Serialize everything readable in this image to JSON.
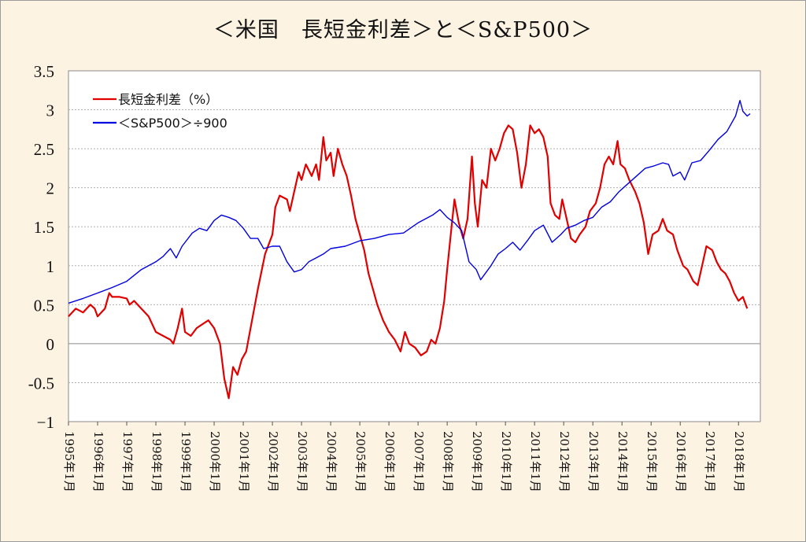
{
  "title": "＜米国　長短金利差＞と＜S&P500＞",
  "chart_data": {
    "type": "line",
    "title": "＜米国　長短金利差＞と＜S&P500＞",
    "xlabel": "",
    "ylabel": "",
    "ylim": [
      -1,
      3.5
    ],
    "xlim": [
      1995.0,
      2018.75
    ],
    "y_ticks": [
      "3.5",
      "3",
      "2.5",
      "2",
      "1.5",
      "1",
      "0.5",
      "0",
      "-0.5",
      "−1"
    ],
    "x_ticks": [
      "1995年1月",
      "1996年1月",
      "1997年1月",
      "1998年1月",
      "1999年1月",
      "2000年1月",
      "2001年1月",
      "2002年1月",
      "2003年1月",
      "2004年1月",
      "2005年1月",
      "2006年1月",
      "2007年1月",
      "2008年1月",
      "2009年1月",
      "2010年1月",
      "2011年1月",
      "2012年1月",
      "2013年1月",
      "2014年1月",
      "2015年1月",
      "2016年1月",
      "2017年1月",
      "2018年1月"
    ],
    "grid": true,
    "legend_position": "top-left",
    "series": [
      {
        "name": "長短金利差（%）",
        "color": "#e00000",
        "points": [
          [
            1995.0,
            0.35
          ],
          [
            1995.25,
            0.45
          ],
          [
            1995.5,
            0.4
          ],
          [
            1995.75,
            0.5
          ],
          [
            1995.9,
            0.45
          ],
          [
            1996.0,
            0.35
          ],
          [
            1996.25,
            0.45
          ],
          [
            1996.4,
            0.65
          ],
          [
            1996.5,
            0.6
          ],
          [
            1996.75,
            0.6
          ],
          [
            1997.0,
            0.58
          ],
          [
            1997.1,
            0.5
          ],
          [
            1997.25,
            0.55
          ],
          [
            1997.5,
            0.45
          ],
          [
            1997.75,
            0.35
          ],
          [
            1998.0,
            0.15
          ],
          [
            1998.25,
            0.1
          ],
          [
            1998.5,
            0.05
          ],
          [
            1998.6,
            0.0
          ],
          [
            1998.75,
            0.2
          ],
          [
            1998.9,
            0.45
          ],
          [
            1999.0,
            0.15
          ],
          [
            1999.2,
            0.1
          ],
          [
            1999.4,
            0.2
          ],
          [
            1999.6,
            0.25
          ],
          [
            1999.8,
            0.3
          ],
          [
            2000.0,
            0.2
          ],
          [
            2000.2,
            0.0
          ],
          [
            2000.35,
            -0.45
          ],
          [
            2000.5,
            -0.7
          ],
          [
            2000.65,
            -0.3
          ],
          [
            2000.8,
            -0.4
          ],
          [
            2000.95,
            -0.2
          ],
          [
            2001.1,
            -0.1
          ],
          [
            2001.3,
            0.3
          ],
          [
            2001.5,
            0.7
          ],
          [
            2001.75,
            1.15
          ],
          [
            2001.9,
            1.3
          ],
          [
            2002.0,
            1.4
          ],
          [
            2002.1,
            1.75
          ],
          [
            2002.25,
            1.9
          ],
          [
            2002.5,
            1.85
          ],
          [
            2002.6,
            1.7
          ],
          [
            2002.75,
            1.95
          ],
          [
            2002.9,
            2.2
          ],
          [
            2003.0,
            2.1
          ],
          [
            2003.15,
            2.3
          ],
          [
            2003.35,
            2.15
          ],
          [
            2003.5,
            2.3
          ],
          [
            2003.6,
            2.1
          ],
          [
            2003.75,
            2.65
          ],
          [
            2003.85,
            2.35
          ],
          [
            2004.0,
            2.45
          ],
          [
            2004.1,
            2.15
          ],
          [
            2004.25,
            2.5
          ],
          [
            2004.4,
            2.3
          ],
          [
            2004.55,
            2.15
          ],
          [
            2004.7,
            1.9
          ],
          [
            2004.85,
            1.6
          ],
          [
            2005.0,
            1.4
          ],
          [
            2005.15,
            1.2
          ],
          [
            2005.3,
            0.9
          ],
          [
            2005.45,
            0.7
          ],
          [
            2005.6,
            0.5
          ],
          [
            2005.8,
            0.3
          ],
          [
            2006.0,
            0.15
          ],
          [
            2006.2,
            0.05
          ],
          [
            2006.4,
            -0.1
          ],
          [
            2006.55,
            0.15
          ],
          [
            2006.7,
            0.0
          ],
          [
            2006.9,
            -0.05
          ],
          [
            2007.1,
            -0.15
          ],
          [
            2007.3,
            -0.1
          ],
          [
            2007.45,
            0.05
          ],
          [
            2007.6,
            0.0
          ],
          [
            2007.75,
            0.2
          ],
          [
            2007.9,
            0.55
          ],
          [
            2008.0,
            0.95
          ],
          [
            2008.15,
            1.5
          ],
          [
            2008.25,
            1.85
          ],
          [
            2008.4,
            1.55
          ],
          [
            2008.55,
            1.35
          ],
          [
            2008.7,
            1.6
          ],
          [
            2008.85,
            2.4
          ],
          [
            2008.95,
            1.8
          ],
          [
            2009.05,
            1.5
          ],
          [
            2009.2,
            2.1
          ],
          [
            2009.35,
            2.0
          ],
          [
            2009.5,
            2.5
          ],
          [
            2009.65,
            2.35
          ],
          [
            2009.8,
            2.5
          ],
          [
            2009.95,
            2.7
          ],
          [
            2010.1,
            2.8
          ],
          [
            2010.25,
            2.75
          ],
          [
            2010.4,
            2.45
          ],
          [
            2010.55,
            2.0
          ],
          [
            2010.7,
            2.3
          ],
          [
            2010.85,
            2.8
          ],
          [
            2011.0,
            2.7
          ],
          [
            2011.15,
            2.75
          ],
          [
            2011.3,
            2.65
          ],
          [
            2011.45,
            2.4
          ],
          [
            2011.55,
            1.8
          ],
          [
            2011.7,
            1.65
          ],
          [
            2011.85,
            1.6
          ],
          [
            2011.95,
            1.85
          ],
          [
            2012.1,
            1.6
          ],
          [
            2012.25,
            1.35
          ],
          [
            2012.4,
            1.3
          ],
          [
            2012.55,
            1.4
          ],
          [
            2012.75,
            1.5
          ],
          [
            2012.9,
            1.7
          ],
          [
            2013.1,
            1.8
          ],
          [
            2013.25,
            2.0
          ],
          [
            2013.4,
            2.3
          ],
          [
            2013.55,
            2.4
          ],
          [
            2013.7,
            2.3
          ],
          [
            2013.85,
            2.6
          ],
          [
            2013.95,
            2.3
          ],
          [
            2014.1,
            2.25
          ],
          [
            2014.25,
            2.1
          ],
          [
            2014.45,
            1.95
          ],
          [
            2014.6,
            1.8
          ],
          [
            2014.75,
            1.55
          ],
          [
            2014.9,
            1.15
          ],
          [
            2015.05,
            1.4
          ],
          [
            2015.25,
            1.45
          ],
          [
            2015.4,
            1.6
          ],
          [
            2015.55,
            1.45
          ],
          [
            2015.75,
            1.4
          ],
          [
            2015.9,
            1.2
          ],
          [
            2016.1,
            1.0
          ],
          [
            2016.25,
            0.95
          ],
          [
            2016.45,
            0.8
          ],
          [
            2016.6,
            0.75
          ],
          [
            2016.75,
            1.0
          ],
          [
            2016.9,
            1.25
          ],
          [
            2017.1,
            1.2
          ],
          [
            2017.25,
            1.05
          ],
          [
            2017.4,
            0.95
          ],
          [
            2017.55,
            0.9
          ],
          [
            2017.7,
            0.8
          ],
          [
            2017.85,
            0.65
          ],
          [
            2018.0,
            0.55
          ],
          [
            2018.15,
            0.6
          ],
          [
            2018.3,
            0.45
          ]
        ]
      },
      {
        "name": "＜S&P500＞÷900",
        "color": "#0000e0",
        "points": [
          [
            1995.0,
            0.52
          ],
          [
            1995.5,
            0.58
          ],
          [
            1996.0,
            0.65
          ],
          [
            1996.5,
            0.72
          ],
          [
            1997.0,
            0.8
          ],
          [
            1997.5,
            0.95
          ],
          [
            1998.0,
            1.05
          ],
          [
            1998.25,
            1.12
          ],
          [
            1998.5,
            1.22
          ],
          [
            1998.7,
            1.1
          ],
          [
            1998.9,
            1.25
          ],
          [
            1999.25,
            1.42
          ],
          [
            1999.5,
            1.48
          ],
          [
            1999.75,
            1.45
          ],
          [
            2000.0,
            1.58
          ],
          [
            2000.25,
            1.65
          ],
          [
            2000.5,
            1.62
          ],
          [
            2000.75,
            1.58
          ],
          [
            2001.0,
            1.48
          ],
          [
            2001.25,
            1.35
          ],
          [
            2001.5,
            1.35
          ],
          [
            2001.7,
            1.22
          ],
          [
            2002.0,
            1.25
          ],
          [
            2002.25,
            1.25
          ],
          [
            2002.5,
            1.05
          ],
          [
            2002.75,
            0.92
          ],
          [
            2003.0,
            0.95
          ],
          [
            2003.25,
            1.05
          ],
          [
            2003.5,
            1.1
          ],
          [
            2003.75,
            1.15
          ],
          [
            2004.0,
            1.22
          ],
          [
            2004.5,
            1.25
          ],
          [
            2005.0,
            1.32
          ],
          [
            2005.5,
            1.35
          ],
          [
            2006.0,
            1.4
          ],
          [
            2006.5,
            1.42
          ],
          [
            2007.0,
            1.55
          ],
          [
            2007.5,
            1.65
          ],
          [
            2007.75,
            1.72
          ],
          [
            2008.0,
            1.62
          ],
          [
            2008.25,
            1.55
          ],
          [
            2008.5,
            1.45
          ],
          [
            2008.75,
            1.05
          ],
          [
            2009.0,
            0.95
          ],
          [
            2009.15,
            0.82
          ],
          [
            2009.5,
            1.0
          ],
          [
            2009.75,
            1.15
          ],
          [
            2010.0,
            1.22
          ],
          [
            2010.25,
            1.3
          ],
          [
            2010.5,
            1.2
          ],
          [
            2010.75,
            1.32
          ],
          [
            2011.0,
            1.45
          ],
          [
            2011.3,
            1.52
          ],
          [
            2011.6,
            1.3
          ],
          [
            2011.9,
            1.4
          ],
          [
            2012.1,
            1.48
          ],
          [
            2012.4,
            1.52
          ],
          [
            2012.7,
            1.58
          ],
          [
            2013.0,
            1.62
          ],
          [
            2013.3,
            1.75
          ],
          [
            2013.6,
            1.82
          ],
          [
            2013.9,
            1.95
          ],
          [
            2014.2,
            2.05
          ],
          [
            2014.5,
            2.15
          ],
          [
            2014.8,
            2.25
          ],
          [
            2015.1,
            2.28
          ],
          [
            2015.4,
            2.32
          ],
          [
            2015.6,
            2.3
          ],
          [
            2015.75,
            2.15
          ],
          [
            2016.0,
            2.2
          ],
          [
            2016.15,
            2.1
          ],
          [
            2016.4,
            2.32
          ],
          [
            2016.7,
            2.35
          ],
          [
            2017.0,
            2.48
          ],
          [
            2017.3,
            2.62
          ],
          [
            2017.6,
            2.72
          ],
          [
            2017.9,
            2.92
          ],
          [
            2018.05,
            3.12
          ],
          [
            2018.15,
            2.98
          ],
          [
            2018.3,
            2.92
          ],
          [
            2018.4,
            2.95
          ]
        ]
      }
    ]
  }
}
